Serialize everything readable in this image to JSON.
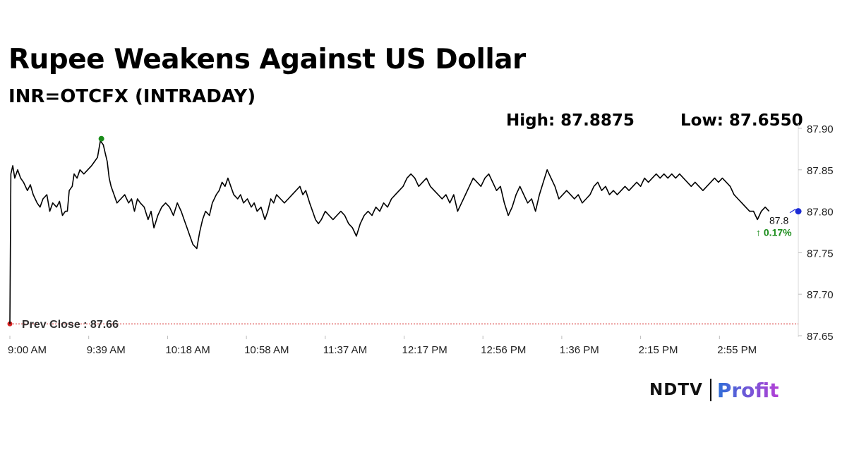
{
  "header": {
    "title": "Rupee Weakens Against US Dollar",
    "subtitle": "INR=OTCFX (INTRADAY)",
    "high_label": "High: 87.8875",
    "low_label": "Low: 87.6550"
  },
  "logo": {
    "brand": "NDTV",
    "product": "Profit"
  },
  "chart_data": {
    "type": "line",
    "x_label_ticks": [
      "9:00 AM",
      "9:39 AM",
      "10:18 AM",
      "10:58 AM",
      "11:37 AM",
      "12:17 PM",
      "12:56 PM",
      "1:36 PM",
      "2:15 PM",
      "2:55 PM"
    ],
    "y_ticks": [
      "87.90",
      "87.85",
      "87.80",
      "87.75",
      "87.70",
      "87.65"
    ],
    "ylim": [
      87.65,
      87.9
    ],
    "x_minutes_range": [
      0,
      405
    ],
    "series": [
      {
        "color": "#000000",
        "points": [
          [
            0,
            87.66
          ],
          [
            0.5,
            87.845
          ],
          [
            1.5,
            87.855
          ],
          [
            2.5,
            87.84
          ],
          [
            4,
            87.85
          ],
          [
            5.5,
            87.84
          ],
          [
            7,
            87.835
          ],
          [
            9,
            87.825
          ],
          [
            10.5,
            87.832
          ],
          [
            12,
            87.82
          ],
          [
            14,
            87.81
          ],
          [
            15.5,
            87.805
          ],
          [
            17,
            87.815
          ],
          [
            19,
            87.82
          ],
          [
            20.5,
            87.8
          ],
          [
            22,
            87.81
          ],
          [
            24,
            87.805
          ],
          [
            25.5,
            87.812
          ],
          [
            27,
            87.795
          ],
          [
            28.5,
            87.8
          ],
          [
            29.5,
            87.8
          ],
          [
            30.5,
            87.825
          ],
          [
            32,
            87.83
          ],
          [
            33,
            87.845
          ],
          [
            34.5,
            87.84
          ],
          [
            36,
            87.85
          ],
          [
            38,
            87.845
          ],
          [
            40,
            87.85
          ],
          [
            42,
            87.855
          ],
          [
            43.5,
            87.86
          ],
          [
            45,
            87.865
          ],
          [
            46.5,
            87.885
          ],
          [
            48,
            87.88
          ],
          [
            49,
            87.87
          ],
          [
            50,
            87.86
          ],
          [
            51,
            87.84
          ],
          [
            52,
            87.83
          ],
          [
            53.5,
            87.82
          ],
          [
            55,
            87.81
          ],
          [
            57,
            87.815
          ],
          [
            59,
            87.82
          ],
          [
            61,
            87.81
          ],
          [
            62.5,
            87.815
          ],
          [
            64,
            87.8
          ],
          [
            65.5,
            87.815
          ],
          [
            67,
            87.81
          ],
          [
            69,
            87.805
          ],
          [
            71,
            87.79
          ],
          [
            72.5,
            87.8
          ],
          [
            74,
            87.78
          ],
          [
            76,
            87.795
          ],
          [
            78,
            87.805
          ],
          [
            80,
            87.81
          ],
          [
            82,
            87.805
          ],
          [
            84,
            87.795
          ],
          [
            86,
            87.81
          ],
          [
            88,
            87.8
          ],
          [
            89.5,
            87.79
          ],
          [
            91,
            87.78
          ],
          [
            92.5,
            87.77
          ],
          [
            94,
            87.76
          ],
          [
            96,
            87.755
          ],
          [
            97.5,
            87.775
          ],
          [
            99,
            87.79
          ],
          [
            100.5,
            87.8
          ],
          [
            102.5,
            87.795
          ],
          [
            104,
            87.81
          ],
          [
            106,
            87.82
          ],
          [
            107.5,
            87.825
          ],
          [
            109,
            87.835
          ],
          [
            110.5,
            87.83
          ],
          [
            112,
            87.84
          ],
          [
            113.5,
            87.83
          ],
          [
            115,
            87.82
          ],
          [
            117,
            87.815
          ],
          [
            118.5,
            87.82
          ],
          [
            120,
            87.81
          ],
          [
            122,
            87.815
          ],
          [
            124,
            87.805
          ],
          [
            125.5,
            87.81
          ],
          [
            127,
            87.8
          ],
          [
            129,
            87.805
          ],
          [
            131,
            87.79
          ],
          [
            132.5,
            87.8
          ],
          [
            134,
            87.815
          ],
          [
            135.5,
            87.81
          ],
          [
            137,
            87.82
          ],
          [
            139,
            87.815
          ],
          [
            141,
            87.81
          ],
          [
            143,
            87.815
          ],
          [
            145,
            87.82
          ],
          [
            147,
            87.825
          ],
          [
            149,
            87.83
          ],
          [
            150.5,
            87.82
          ],
          [
            152,
            87.825
          ],
          [
            154,
            87.81
          ],
          [
            155.5,
            87.8
          ],
          [
            157,
            87.79
          ],
          [
            158.5,
            87.785
          ],
          [
            160,
            87.79
          ],
          [
            162,
            87.8
          ],
          [
            164,
            87.795
          ],
          [
            166,
            87.79
          ],
          [
            168,
            87.795
          ],
          [
            170,
            87.8
          ],
          [
            172,
            87.795
          ],
          [
            174,
            87.785
          ],
          [
            176,
            87.78
          ],
          [
            178,
            87.77
          ],
          [
            180,
            87.785
          ],
          [
            182,
            87.795
          ],
          [
            184,
            87.8
          ],
          [
            186,
            87.795
          ],
          [
            188,
            87.805
          ],
          [
            190,
            87.8
          ],
          [
            192,
            87.81
          ],
          [
            194,
            87.805
          ],
          [
            196,
            87.815
          ],
          [
            198,
            87.82
          ],
          [
            200,
            87.825
          ],
          [
            202,
            87.83
          ],
          [
            204,
            87.84
          ],
          [
            206,
            87.845
          ],
          [
            208,
            87.84
          ],
          [
            210,
            87.83
          ],
          [
            212,
            87.835
          ],
          [
            214,
            87.84
          ],
          [
            216,
            87.83
          ],
          [
            218,
            87.825
          ],
          [
            220,
            87.82
          ],
          [
            222,
            87.815
          ],
          [
            224,
            87.82
          ],
          [
            226,
            87.81
          ],
          [
            228,
            87.82
          ],
          [
            230,
            87.8
          ],
          [
            232,
            87.81
          ],
          [
            234,
            87.82
          ],
          [
            236,
            87.83
          ],
          [
            238,
            87.84
          ],
          [
            240,
            87.835
          ],
          [
            242,
            87.83
          ],
          [
            244,
            87.84
          ],
          [
            246,
            87.845
          ],
          [
            248,
            87.835
          ],
          [
            250,
            87.825
          ],
          [
            252,
            87.83
          ],
          [
            254,
            87.81
          ],
          [
            256,
            87.795
          ],
          [
            258,
            87.805
          ],
          [
            260,
            87.82
          ],
          [
            262,
            87.83
          ],
          [
            264,
            87.82
          ],
          [
            266,
            87.81
          ],
          [
            268,
            87.815
          ],
          [
            270,
            87.8
          ],
          [
            272,
            87.82
          ],
          [
            274,
            87.835
          ],
          [
            276,
            87.85
          ],
          [
            278,
            87.84
          ],
          [
            280,
            87.83
          ],
          [
            282,
            87.815
          ],
          [
            284,
            87.82
          ],
          [
            286,
            87.825
          ],
          [
            288,
            87.82
          ],
          [
            290,
            87.815
          ],
          [
            292,
            87.82
          ],
          [
            294,
            87.81
          ],
          [
            296,
            87.815
          ],
          [
            298,
            87.82
          ],
          [
            300,
            87.83
          ],
          [
            302,
            87.835
          ],
          [
            304,
            87.825
          ],
          [
            306,
            87.83
          ],
          [
            308,
            87.82
          ],
          [
            310,
            87.825
          ],
          [
            312,
            87.82
          ],
          [
            314,
            87.825
          ],
          [
            316,
            87.83
          ],
          [
            318,
            87.825
          ],
          [
            320,
            87.83
          ],
          [
            322,
            87.835
          ],
          [
            324,
            87.83
          ],
          [
            326,
            87.84
          ],
          [
            328,
            87.835
          ],
          [
            330,
            87.84
          ],
          [
            332,
            87.845
          ],
          [
            334,
            87.84
          ],
          [
            336,
            87.845
          ],
          [
            338,
            87.84
          ],
          [
            340,
            87.845
          ],
          [
            342,
            87.84
          ],
          [
            344,
            87.845
          ],
          [
            346,
            87.84
          ],
          [
            348,
            87.835
          ],
          [
            350,
            87.83
          ],
          [
            352,
            87.835
          ],
          [
            354,
            87.83
          ],
          [
            356,
            87.825
          ],
          [
            358,
            87.83
          ],
          [
            360,
            87.835
          ],
          [
            362,
            87.84
          ],
          [
            364,
            87.835
          ],
          [
            366,
            87.84
          ],
          [
            368,
            87.835
          ],
          [
            370,
            87.83
          ],
          [
            372,
            87.82
          ],
          [
            374,
            87.815
          ],
          [
            376,
            87.81
          ],
          [
            378,
            87.805
          ],
          [
            380,
            87.8
          ],
          [
            382,
            87.8
          ],
          [
            384,
            87.79
          ],
          [
            386,
            87.8
          ],
          [
            388,
            87.805
          ],
          [
            390,
            87.8
          ]
        ]
      }
    ],
    "prev_close": {
      "value": 87.66,
      "label": "Prev Close : 87.66",
      "color": "#d42020"
    },
    "high_marker": {
      "x": 47,
      "y": 87.8875,
      "color": "#1a8c1a"
    },
    "last_value": {
      "label": "87.8",
      "change": "↑ 0.17%",
      "change_color": "#1a8c1a",
      "marker_color": "#1c2bd6"
    },
    "grid": false
  }
}
